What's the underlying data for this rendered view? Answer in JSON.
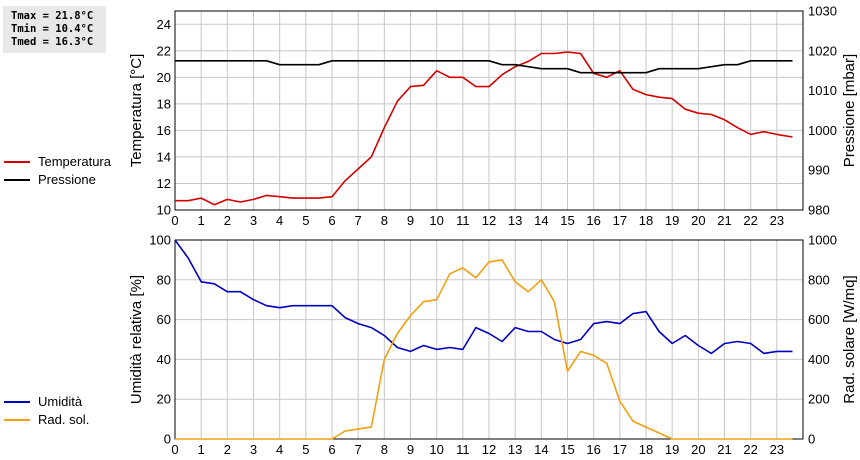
{
  "stats": {
    "tmax": "Tmax = 21.8°C",
    "tmin": "Tmin = 10.4°C",
    "tmed": "Tmed = 16.3°C"
  },
  "chart_data": [
    {
      "type": "line",
      "x_ticks": [
        "0",
        "1",
        "2",
        "3",
        "4",
        "5",
        "6",
        "7",
        "8",
        "9",
        "10",
        "11",
        "12",
        "13",
        "14",
        "15",
        "16",
        "17",
        "18",
        "19",
        "20",
        "21",
        "22",
        "23"
      ],
      "xlim": [
        0,
        24
      ],
      "ylabel": "Temperatura [°C]",
      "ylabel2": "Pressione [mbar]",
      "ylim": [
        10,
        25
      ],
      "y_ticks": [
        10,
        12,
        14,
        16,
        18,
        20,
        22,
        24
      ],
      "ylim2": [
        980,
        1030
      ],
      "y2_ticks": [
        980,
        990,
        1000,
        1010,
        1020,
        1030
      ],
      "grid": true,
      "series": [
        {
          "name": "Temperatura",
          "color": "#d40000",
          "axis": "left",
          "x": [
            0,
            0.5,
            1,
            1.5,
            2,
            2.5,
            3,
            3.5,
            4,
            4.5,
            5,
            5.5,
            6,
            6.5,
            7,
            7.5,
            8,
            8.5,
            9,
            9.5,
            10,
            10.5,
            11,
            11.5,
            12,
            12.5,
            13,
            13.5,
            14,
            14.5,
            15,
            15.5,
            16,
            16.5,
            17,
            17.5,
            18,
            18.5,
            19,
            19.5,
            20,
            20.5,
            21,
            21.5,
            22,
            22.5,
            23,
            23.6
          ],
          "values": [
            10.7,
            10.7,
            10.9,
            10.4,
            10.8,
            10.6,
            10.8,
            11.1,
            11.0,
            10.9,
            10.9,
            10.9,
            11.0,
            12.2,
            13.1,
            14.0,
            16.2,
            18.2,
            19.3,
            19.4,
            20.5,
            20.0,
            20.0,
            19.3,
            19.3,
            20.2,
            20.8,
            21.2,
            21.8,
            21.8,
            21.9,
            21.8,
            20.3,
            20.0,
            20.5,
            19.1,
            18.7,
            18.5,
            18.4,
            17.6,
            17.3,
            17.2,
            16.8,
            16.2,
            15.7,
            15.9,
            15.7,
            15.5
          ]
        },
        {
          "name": "Pressione",
          "color": "#000000",
          "axis": "right",
          "x": [
            0,
            1,
            2,
            3,
            3.5,
            4,
            5,
            5.5,
            6,
            7,
            8,
            9,
            10,
            11,
            12,
            12.5,
            13,
            14,
            15,
            15.5,
            16,
            17,
            18,
            18.5,
            19,
            20,
            21,
            21.5,
            22,
            23,
            23.6
          ],
          "values": [
            1017.5,
            1017.5,
            1017.5,
            1017.5,
            1017.5,
            1016.5,
            1016.5,
            1016.5,
            1017.5,
            1017.5,
            1017.5,
            1017.5,
            1017.5,
            1017.5,
            1017.5,
            1016.5,
            1016.5,
            1015.5,
            1015.5,
            1014.5,
            1014.5,
            1014.5,
            1014.5,
            1015.5,
            1015.5,
            1015.5,
            1016.5,
            1016.5,
            1017.5,
            1017.5,
            1017.5
          ]
        }
      ]
    },
    {
      "type": "line",
      "x_ticks": [
        "0",
        "1",
        "2",
        "3",
        "4",
        "5",
        "6",
        "7",
        "8",
        "9",
        "10",
        "11",
        "12",
        "13",
        "14",
        "15",
        "16",
        "17",
        "18",
        "19",
        "20",
        "21",
        "22",
        "23"
      ],
      "xlim": [
        0,
        24
      ],
      "ylabel": "Umidità relativa [%]",
      "ylabel2": "Rad. solare [W/mq]",
      "ylim": [
        0,
        100
      ],
      "y_ticks": [
        0,
        20,
        40,
        60,
        80,
        100
      ],
      "ylim2": [
        0,
        1000
      ],
      "y2_ticks": [
        0,
        200,
        400,
        600,
        800,
        1000
      ],
      "grid": true,
      "series": [
        {
          "name": "Umidità",
          "color": "#0000c0",
          "axis": "left",
          "x": [
            0,
            0.5,
            1,
            1.5,
            2,
            2.5,
            3,
            3.5,
            4,
            4.5,
            5,
            5.5,
            6,
            6.5,
            7,
            7.5,
            8,
            8.5,
            9,
            9.5,
            10,
            10.5,
            11,
            11.5,
            12,
            12.5,
            13,
            13.5,
            14,
            14.5,
            15,
            15.5,
            16,
            16.5,
            17,
            17.5,
            18,
            18.5,
            19,
            19.5,
            20,
            20.5,
            21,
            21.5,
            22,
            22.5,
            23,
            23.6
          ],
          "values": [
            100,
            91,
            79,
            78,
            74,
            74,
            70,
            67,
            66,
            67,
            67,
            67,
            67,
            61,
            58,
            56,
            52,
            46,
            44,
            47,
            45,
            46,
            45,
            56,
            53,
            49,
            56,
            54,
            54,
            50,
            48,
            50,
            58,
            59,
            58,
            63,
            64,
            54,
            48,
            52,
            47,
            43,
            48,
            49,
            48,
            43,
            44,
            44
          ]
        },
        {
          "name": "Rad. sol.",
          "color": "#f0a010",
          "axis": "right",
          "x": [
            0,
            6,
            6.5,
            7,
            7.5,
            8,
            8.5,
            9,
            9.5,
            10,
            10.5,
            11,
            11.5,
            12,
            12.5,
            13,
            13.5,
            14,
            14.5,
            15,
            15.5,
            16,
            16.5,
            17,
            17.5,
            18,
            18.5,
            19,
            19.5,
            20,
            21,
            22,
            23,
            23.6
          ],
          "values": [
            0,
            0,
            40,
            50,
            60,
            400,
            530,
            620,
            690,
            700,
            830,
            860,
            810,
            890,
            900,
            790,
            740,
            800,
            690,
            340,
            440,
            420,
            380,
            190,
            90,
            60,
            30,
            0,
            0,
            0,
            0,
            0,
            0,
            0
          ]
        }
      ]
    }
  ]
}
